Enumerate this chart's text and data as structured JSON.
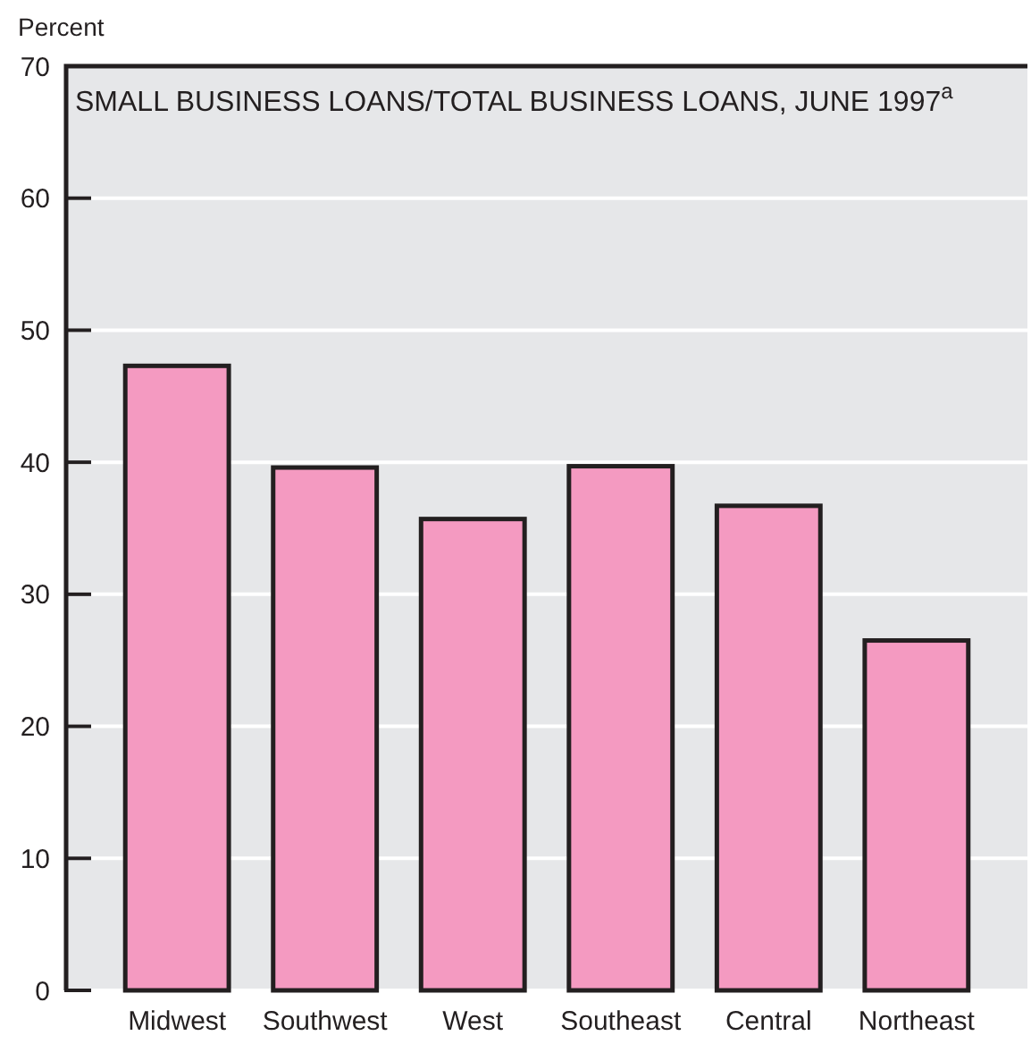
{
  "chart_data": {
    "type": "bar",
    "title": "SMALL BUSINESS LOANS/TOTAL BUSINESS LOANS, JUNE 1997$^{a}$",
    "ylabel": "Percent",
    "categories": [
      "Midwest",
      "Southwest",
      "West",
      "Southeast",
      "Central",
      "Northeast"
    ],
    "values": [
      47.3,
      39.6,
      35.7,
      39.7,
      36.7,
      26.5
    ],
    "color": "#f49ac1",
    "ylim": [
      0,
      70
    ],
    "yticks": [
      0,
      10,
      20,
      30,
      40,
      50,
      60,
      70
    ],
    "grid": "y"
  }
}
